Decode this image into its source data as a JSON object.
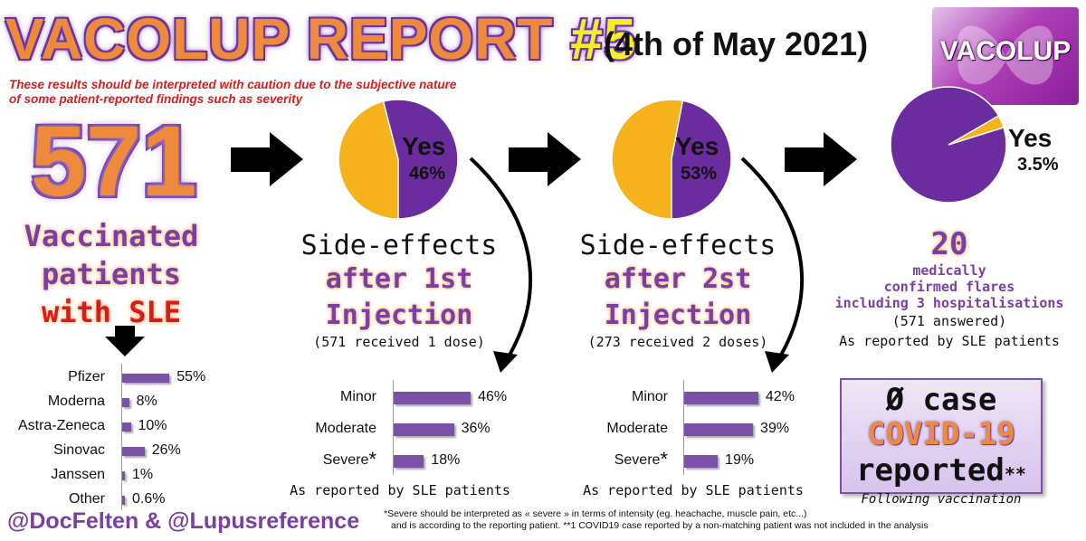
{
  "header": {
    "title": "VACOLUP REPORT",
    "title_number": "#5",
    "date": "(4th of May 2021)",
    "logo_text": "VACOLUP",
    "caution_line1": "These results should be interpreted with caution due to the subjective nature",
    "caution_line2": "of some patient-reported findings such as severity"
  },
  "left": {
    "count": "571",
    "line1": "Vaccinated",
    "line2": "patients",
    "line3": "with SLE"
  },
  "pies": [
    {
      "label": "Yes",
      "pct_text": "46%",
      "fraction": 0.46
    },
    {
      "label": "Yes",
      "pct_text": "53%",
      "fraction": 0.53
    },
    {
      "label": "Yes",
      "pct_text": "3.5%",
      "fraction": 0.035
    }
  ],
  "panel1": {
    "head": "Side-effects",
    "sub1": "after 1st",
    "sub2": "Injection",
    "note": "(571 received 1 dose)",
    "reported": "As reported by SLE patients"
  },
  "panel2": {
    "head": "Side-effects",
    "sub1": "after 2st",
    "sub2": "Injection",
    "note": "(273 received 2 doses)",
    "reported": "As reported by SLE patients"
  },
  "panel3": {
    "count": "20",
    "line1": "medically",
    "line2": "confirmed flares",
    "line3": "including 3 hospitalisations",
    "note": "(571 answered)",
    "reported": "As reported by SLE patients"
  },
  "covid_box": {
    "line1": "Ø case",
    "line2": "COVID-19",
    "line3": "reported",
    "stars": "**",
    "below": "Following vaccination"
  },
  "footer": {
    "handle": "@DocFelten & @Lupusreference",
    "note1": "*Severe should be interpreted as « severe » in terms of intensity (eg. heachache, muscle pain, etc...)",
    "note2": "and is according to the reporting patient. **1 COVID19 case reported by a non-matching patient was not included in the analysis"
  },
  "colors": {
    "purple": "#6a2c9e",
    "yellow": "#f6b21a",
    "bar": "#7a50a8",
    "orange": "#ee8a3c",
    "red": "#d81c1c"
  },
  "chart_data": [
    {
      "type": "bar",
      "categories": [
        "Pfizer",
        "Moderna",
        "Astra-Zeneca",
        "Sinovac",
        "Janssen",
        "Other"
      ],
      "values": [
        55,
        8,
        10,
        26,
        1,
        0.6
      ],
      "labels": [
        "55%",
        "8%",
        "10%",
        "26%",
        "1%",
        "0.6%"
      ]
    },
    {
      "type": "bar",
      "categories": [
        "Minor",
        "Moderate",
        "Severe"
      ],
      "values": [
        46,
        36,
        18
      ],
      "labels": [
        "46%",
        "36%",
        "18%"
      ]
    },
    {
      "type": "bar",
      "categories": [
        "Minor",
        "Moderate",
        "Severe"
      ],
      "values": [
        42,
        39,
        19
      ],
      "labels": [
        "42%",
        "39%",
        "19%"
      ]
    },
    {
      "type": "pie",
      "categories": [
        "Yes",
        "No"
      ],
      "values": [
        46,
        54
      ]
    },
    {
      "type": "pie",
      "categories": [
        "Yes",
        "No"
      ],
      "values": [
        53,
        47
      ]
    },
    {
      "type": "pie",
      "categories": [
        "Yes",
        "No"
      ],
      "values": [
        3.5,
        96.5
      ]
    }
  ]
}
